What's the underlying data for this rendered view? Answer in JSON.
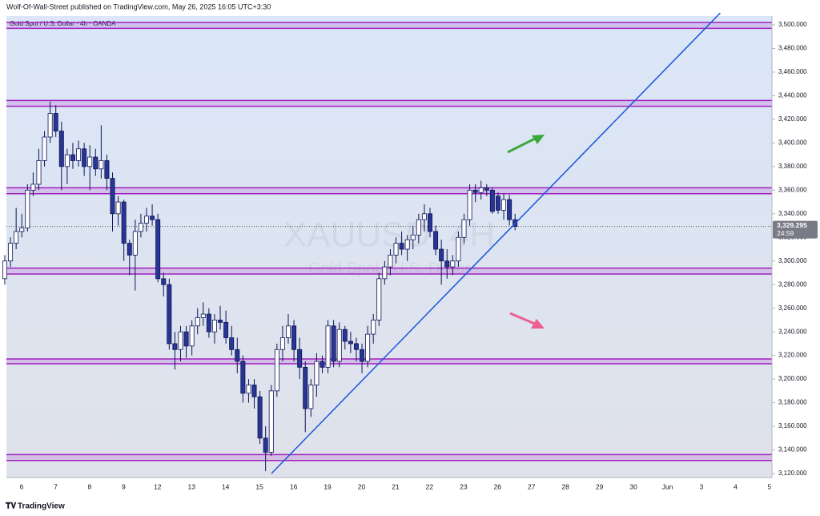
{
  "chart_data": {
    "type": "candlestick",
    "header": "Wolf-Of-Wall-Street published on TradingView.com, May 26, 2025 16:05 UTC+3:30",
    "symbol": "Gold Spot / U.S. Dollar · 4h · OANDA",
    "watermark": "XAUUSD, 4H",
    "watermark_sub": "Gold Spot / U.S. Dollar",
    "footer": "TradingView",
    "x_labels": [
      "6",
      "7",
      "8",
      "9",
      "12",
      "13",
      "14",
      "15",
      "16",
      "19",
      "20",
      "21",
      "22",
      "23",
      "26",
      "27",
      "28",
      "29",
      "30",
      "Jun",
      "3",
      "4",
      "5"
    ],
    "ylim": [
      3120,
      3500
    ],
    "yticks": [
      {
        "value": 3120,
        "label": "3,120.000"
      },
      {
        "value": 3140,
        "label": "3,140.000"
      },
      {
        "value": 3160,
        "label": "3,160.000"
      },
      {
        "value": 3180,
        "label": "3,180.000"
      },
      {
        "value": 3200,
        "label": "3,200.000"
      },
      {
        "value": 3220,
        "label": "3,220.000"
      },
      {
        "value": 3240,
        "label": "3,240.000"
      },
      {
        "value": 3260,
        "label": "3,260.000"
      },
      {
        "value": 3280,
        "label": "3,280.000"
      },
      {
        "value": 3300,
        "label": "3,300.000"
      },
      {
        "value": 3320,
        "label": "3,320.000"
      },
      {
        "value": 3340,
        "label": "3,340.000"
      },
      {
        "value": 3360,
        "label": "3,360.000"
      },
      {
        "value": 3380,
        "label": "3,380.000"
      },
      {
        "value": 3400,
        "label": "3,400.000"
      },
      {
        "value": 3420,
        "label": "3,420.000"
      },
      {
        "value": 3440,
        "label": "3,440.000"
      },
      {
        "value": 3460,
        "label": "3,460.000"
      },
      {
        "value": 3480,
        "label": "3,480.000"
      },
      {
        "value": 3500,
        "label": "3,500.000"
      }
    ],
    "last_price": {
      "value": 3329.295,
      "label": "3,329.295"
    },
    "countdown": "24:59",
    "up_color": "#ffffff",
    "down_color": "#283593",
    "wick_color": "#0d1457",
    "zones": [
      {
        "top": 3502,
        "bottom": 3497
      },
      {
        "top": 3436,
        "bottom": 3431
      },
      {
        "top": 3362,
        "bottom": 3357
      },
      {
        "top": 3294,
        "bottom": 3289
      },
      {
        "top": 3217,
        "bottom": 3213
      },
      {
        "top": 3136,
        "bottom": 3131
      }
    ],
    "zone_color": "#a020c0",
    "trendline": [
      3120,
      3510
    ],
    "trendline_color": "#1a56db",
    "ohlc": [
      [
        3285,
        3305,
        3280,
        3300
      ],
      [
        3300,
        3320,
        3295,
        3315
      ],
      [
        3315,
        3345,
        3310,
        3325
      ],
      [
        3325,
        3340,
        3320,
        3328
      ],
      [
        3328,
        3365,
        3325,
        3360
      ],
      [
        3360,
        3375,
        3355,
        3365
      ],
      [
        3365,
        3395,
        3360,
        3385
      ],
      [
        3385,
        3410,
        3380,
        3405
      ],
      [
        3405,
        3435,
        3400,
        3425
      ],
      [
        3425,
        3432,
        3405,
        3410
      ],
      [
        3410,
        3418,
        3360,
        3380
      ],
      [
        3380,
        3395,
        3365,
        3390
      ],
      [
        3390,
        3400,
        3378,
        3385
      ],
      [
        3385,
        3402,
        3380,
        3395
      ],
      [
        3395,
        3400,
        3372,
        3380
      ],
      [
        3380,
        3398,
        3360,
        3388
      ],
      [
        3388,
        3395,
        3372,
        3378
      ],
      [
        3378,
        3415,
        3370,
        3385
      ],
      [
        3385,
        3390,
        3360,
        3370
      ],
      [
        3370,
        3375,
        3325,
        3340
      ],
      [
        3340,
        3355,
        3330,
        3350
      ],
      [
        3350,
        3352,
        3300,
        3315
      ],
      [
        3315,
        3318,
        3288,
        3305
      ],
      [
        3305,
        3335,
        3275,
        3325
      ],
      [
        3325,
        3340,
        3320,
        3332
      ],
      [
        3332,
        3345,
        3325,
        3338
      ],
      [
        3338,
        3348,
        3330,
        3335
      ],
      [
        3335,
        3340,
        3282,
        3285
      ],
      [
        3285,
        3290,
        3270,
        3280
      ],
      [
        3280,
        3285,
        3225,
        3230
      ],
      [
        3230,
        3240,
        3208,
        3225
      ],
      [
        3225,
        3245,
        3215,
        3240
      ],
      [
        3240,
        3245,
        3218,
        3228
      ],
      [
        3228,
        3250,
        3220,
        3245
      ],
      [
        3245,
        3260,
        3238,
        3252
      ],
      [
        3252,
        3265,
        3245,
        3255
      ],
      [
        3255,
        3260,
        3235,
        3240
      ],
      [
        3240,
        3255,
        3230,
        3250
      ],
      [
        3250,
        3262,
        3242,
        3248
      ],
      [
        3248,
        3258,
        3230,
        3235
      ],
      [
        3235,
        3245,
        3220,
        3225
      ],
      [
        3225,
        3235,
        3205,
        3215
      ],
      [
        3215,
        3220,
        3180,
        3188
      ],
      [
        3188,
        3200,
        3180,
        3195
      ],
      [
        3195,
        3200,
        3175,
        3185
      ],
      [
        3185,
        3190,
        3145,
        3150
      ],
      [
        3150,
        3160,
        3122,
        3138
      ],
      [
        3138,
        3195,
        3135,
        3190
      ],
      [
        3190,
        3230,
        3185,
        3225
      ],
      [
        3225,
        3245,
        3215,
        3235
      ],
      [
        3235,
        3255,
        3230,
        3245
      ],
      [
        3245,
        3250,
        3215,
        3225
      ],
      [
        3225,
        3235,
        3200,
        3210
      ],
      [
        3210,
        3215,
        3155,
        3175
      ],
      [
        3175,
        3200,
        3168,
        3195
      ],
      [
        3195,
        3222,
        3185,
        3215
      ],
      [
        3215,
        3220,
        3205,
        3210
      ],
      [
        3210,
        3250,
        3205,
        3245
      ],
      [
        3245,
        3250,
        3210,
        3215
      ],
      [
        3215,
        3248,
        3210,
        3242
      ],
      [
        3242,
        3245,
        3225,
        3232
      ],
      [
        3232,
        3240,
        3222,
        3230
      ],
      [
        3230,
        3235,
        3215,
        3225
      ],
      [
        3225,
        3230,
        3205,
        3215
      ],
      [
        3215,
        3245,
        3210,
        3238
      ],
      [
        3238,
        3255,
        3230,
        3250
      ],
      [
        3250,
        3290,
        3245,
        3285
      ],
      [
        3285,
        3300,
        3280,
        3295
      ],
      [
        3295,
        3310,
        3288,
        3305
      ],
      [
        3305,
        3320,
        3298,
        3315
      ],
      [
        3315,
        3325,
        3305,
        3310
      ],
      [
        3310,
        3322,
        3300,
        3318
      ],
      [
        3318,
        3330,
        3310,
        3322
      ],
      [
        3322,
        3340,
        3315,
        3335
      ],
      [
        3335,
        3348,
        3325,
        3340
      ],
      [
        3340,
        3345,
        3320,
        3325
      ],
      [
        3325,
        3330,
        3305,
        3310
      ],
      [
        3310,
        3318,
        3280,
        3300
      ],
      [
        3300,
        3310,
        3285,
        3295
      ],
      [
        3295,
        3305,
        3288,
        3300
      ],
      [
        3300,
        3325,
        3295,
        3320
      ],
      [
        3320,
        3340,
        3315,
        3335
      ],
      [
        3335,
        3365,
        3330,
        3360
      ],
      [
        3360,
        3365,
        3350,
        3358
      ],
      [
        3358,
        3368,
        3352,
        3362
      ],
      [
        3362,
        3365,
        3355,
        3360
      ],
      [
        3360,
        3362,
        3340,
        3342
      ],
      [
        3355,
        3358,
        3340,
        3343
      ],
      [
        3343,
        3357,
        3335,
        3352
      ],
      [
        3352,
        3356,
        3330,
        3335
      ],
      [
        3335,
        3340,
        3326,
        3329.295
      ]
    ]
  }
}
